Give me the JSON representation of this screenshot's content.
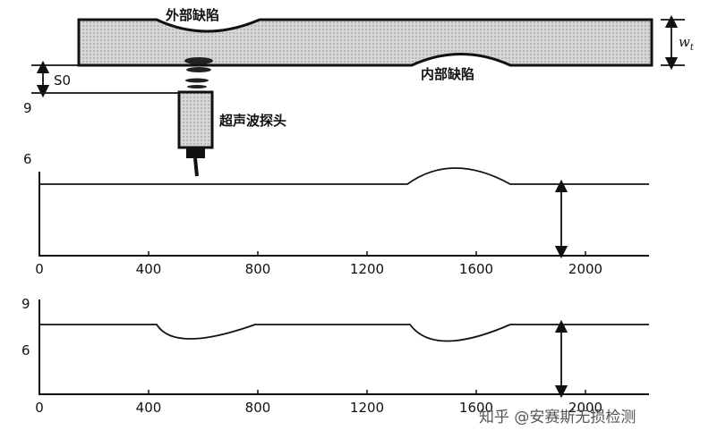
{
  "wall": {
    "outer_defect": "外部缺陷",
    "inner_defect": "内部缺陷",
    "probe": "超声波探头",
    "offset": "S0",
    "thickness": "w",
    "thickness_sub": "t",
    "side_label": "9"
  },
  "upper_plot": {
    "y_label": "6",
    "x_ticks": [
      "0",
      "400",
      "800",
      "1200",
      "1600",
      "2000"
    ]
  },
  "lower_plot": {
    "y_labels": [
      "9",
      "6"
    ],
    "x_ticks": [
      "0",
      "400",
      "800",
      "1200",
      "1600",
      "2000"
    ]
  },
  "watermark": "知乎 @安赛斯无损检测"
}
